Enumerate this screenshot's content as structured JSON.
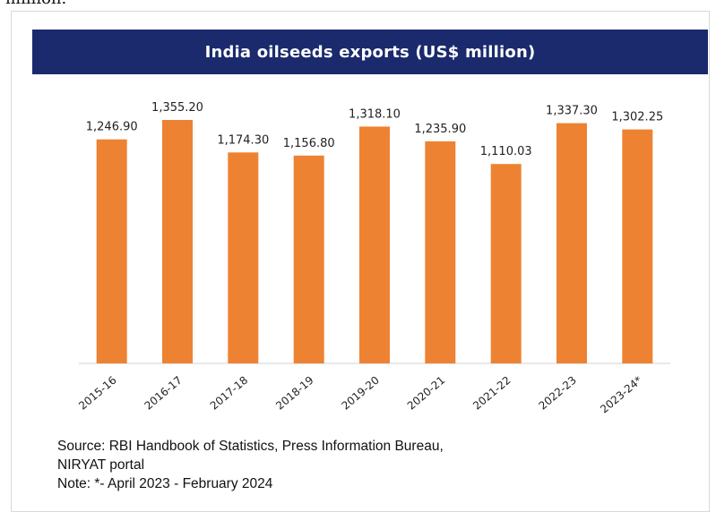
{
  "page": {
    "top_fragment": "million."
  },
  "chart_data": {
    "type": "bar",
    "title": "India oilseeds exports (US$ million)",
    "categories": [
      "2015-16",
      "2016-17",
      "2017-18",
      "2018-19",
      "2019-20",
      "2020-21",
      "2021-22",
      "2022-23",
      "2023-24*"
    ],
    "values": [
      1246.9,
      1355.2,
      1174.3,
      1156.8,
      1318.1,
      1235.9,
      1110.03,
      1337.3,
      1302.25
    ],
    "value_labels": [
      "1,246.90",
      "1,355.20",
      "1,174.30",
      "1,156.80",
      "1,318.10",
      "1,235.90",
      "1,110.03",
      "1,337.30",
      "1,302.25"
    ],
    "ylim": [
      0,
      1400
    ],
    "grid": false,
    "colors": {
      "bar": "#ee8233",
      "title_bg": "#1a2a6c",
      "title_text": "#ffffff",
      "axis": "#d0d0d0"
    }
  },
  "footer": {
    "source_line1": "Source: RBI Handbook of Statistics, Press Information Bureau,",
    "source_line2": "NIRYAT portal",
    "note": "Note: *- April 2023 - February 2024"
  }
}
